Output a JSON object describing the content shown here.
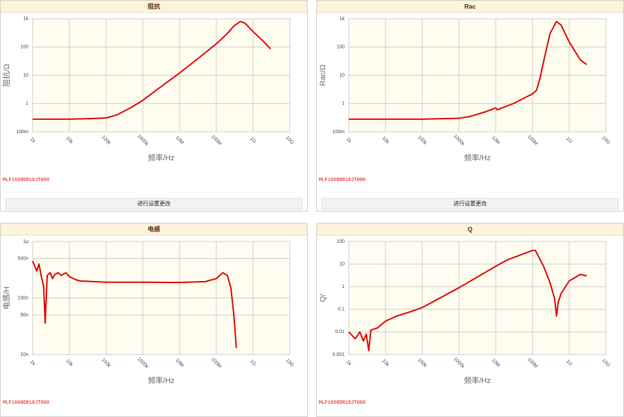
{
  "chart_data": [
    {
      "type": "line",
      "title": "阻抗",
      "ylabel": "阻抗/Ω",
      "xlabel": "频率/Hz",
      "annotation": "MLF1608DR18JT000",
      "button": "进行设置更改",
      "xscale": "log",
      "yscale": "log",
      "grid": true,
      "color": "#e00000",
      "xlim": [
        1000,
        10000000000
      ],
      "ylim": [
        0.1,
        1000
      ],
      "xticks": [
        {
          "value": 1000,
          "label": "1k"
        },
        {
          "value": 10000,
          "label": "10k"
        },
        {
          "value": 100000,
          "label": "100k"
        },
        {
          "value": 1000000,
          "label": "1000k"
        },
        {
          "value": 10000000,
          "label": "10M"
        },
        {
          "value": 100000000,
          "label": "100M"
        },
        {
          "value": 1000000000,
          "label": "1G"
        },
        {
          "value": 10000000000,
          "label": "10G"
        }
      ],
      "yticks": [
        {
          "value": 0.1,
          "label": "100m"
        },
        1,
        10,
        100,
        {
          "value": 1000,
          "label": "1k"
        }
      ],
      "x": [
        1000,
        10000,
        30000,
        100000,
        200000,
        500000,
        1000000,
        3000000,
        10000000,
        30000000,
        100000000,
        200000000,
        300000000,
        450000000,
        600000000,
        1000000000,
        2000000000,
        3000000000
      ],
      "values": [
        0.28,
        0.28,
        0.29,
        0.31,
        0.4,
        0.75,
        1.3,
        3.8,
        12,
        37,
        130,
        300,
        550,
        800,
        700,
        350,
        150,
        85
      ]
    },
    {
      "type": "line",
      "title": "Rac",
      "ylabel": "Rac/Ω",
      "xlabel": "频率/Hz",
      "annotation": "MLF1608DR18JT000",
      "button": "进行设置更改",
      "xscale": "log",
      "yscale": "log",
      "grid": true,
      "color": "#e00000",
      "xlim": [
        1000,
        10000000000
      ],
      "ylim": [
        0.1,
        1000
      ],
      "xticks": [
        {
          "value": 1000,
          "label": "1k"
        },
        {
          "value": 10000,
          "label": "10k"
        },
        {
          "value": 100000,
          "label": "100k"
        },
        {
          "value": 1000000,
          "label": "1000k"
        },
        {
          "value": 10000000,
          "label": "10M"
        },
        {
          "value": 100000000,
          "label": "100M"
        },
        {
          "value": 1000000000,
          "label": "1G"
        },
        {
          "value": 10000000000,
          "label": "10G"
        }
      ],
      "yticks": [
        {
          "value": 0.1,
          "label": "100m"
        },
        1,
        10,
        100,
        {
          "value": 1000,
          "label": "1k"
        }
      ],
      "x": [
        1000,
        100000,
        1000000,
        2000000,
        5000000,
        10000000,
        11000000,
        30000000,
        100000000,
        130000000,
        160000000,
        200000000,
        300000000,
        450000000,
        600000000,
        1000000000,
        2000000000,
        3000000000
      ],
      "values": [
        0.28,
        0.28,
        0.3,
        0.35,
        0.5,
        0.7,
        0.6,
        1.0,
        2.2,
        3,
        8,
        30,
        300,
        800,
        600,
        150,
        35,
        24
      ]
    },
    {
      "type": "line",
      "title": "电感",
      "ylabel": "电感/H",
      "xlabel": "频率/Hz",
      "annotation": "MLF1608DR18JT000",
      "xscale": "log",
      "yscale": "log",
      "grid": true,
      "color": "#e00000",
      "xlim": [
        1000,
        10000000000
      ],
      "ylim": [
        1e-08,
        1e-06
      ],
      "xticks": [
        {
          "value": 1000,
          "label": "1k"
        },
        {
          "value": 10000,
          "label": "10k"
        },
        {
          "value": 100000,
          "label": "100k"
        },
        {
          "value": 1000000,
          "label": "1000k"
        },
        {
          "value": 10000000,
          "label": "10M"
        },
        {
          "value": 100000000,
          "label": "100M"
        },
        {
          "value": 1000000000,
          "label": "1G"
        },
        {
          "value": 10000000000,
          "label": "10G"
        }
      ],
      "yticks": [
        {
          "value": 1e-08,
          "label": "10n"
        },
        {
          "value": 5e-08,
          "label": "50n"
        },
        {
          "value": 1e-07,
          "label": "100n"
        },
        {
          "value": 5e-07,
          "label": "500n"
        },
        {
          "value": 1e-06,
          "label": "1μ"
        }
      ],
      "x": [
        1000,
        1300,
        1500,
        1700,
        2000,
        2200,
        2500,
        3000,
        3500,
        4000,
        5000,
        6000,
        8000,
        10000,
        15000,
        20000,
        100000,
        1000000,
        10000000,
        50000000,
        100000000,
        150000000,
        200000000,
        250000000,
        300000000,
        350000000
      ],
      "values": [
        4.5e-07,
        3e-07,
        4e-07,
        2.5e-07,
        1.6e-07,
        3.6e-08,
        2.5e-07,
        2.8e-07,
        2.2e-07,
        2.6e-07,
        2.8e-07,
        2.5e-07,
        2.8e-07,
        2.4e-07,
        2.1e-07,
        2e-07,
        1.9e-07,
        1.9e-07,
        1.88e-07,
        1.95e-07,
        2.2e-07,
        2.8e-07,
        2.5e-07,
        1.5e-07,
        5e-08,
        1.3e-08
      ]
    },
    {
      "type": "line",
      "title": "Q",
      "ylabel": "Q/",
      "xlabel": "频率/Hz",
      "annotation": "MLF1608DR18JT000",
      "xscale": "log",
      "yscale": "log",
      "grid": true,
      "color": "#e00000",
      "xlim": [
        1000,
        10000000000
      ],
      "ylim": [
        0.001,
        100
      ],
      "xticks": [
        {
          "value": 1000,
          "label": "1k"
        },
        {
          "value": 10000,
          "label": "10k"
        },
        {
          "value": 100000,
          "label": "100k"
        },
        {
          "value": 1000000,
          "label": "1000k"
        },
        {
          "value": 10000000,
          "label": "10M"
        },
        {
          "value": 100000000,
          "label": "100M"
        },
        {
          "value": 1000000000,
          "label": "1G"
        },
        {
          "value": 10000000000,
          "label": "10G"
        }
      ],
      "yticks": [
        0.001,
        0.01,
        0.1,
        1,
        10,
        100
      ],
      "x": [
        1000,
        1500,
        2000,
        2500,
        3000,
        3500,
        4000,
        6000,
        10000,
        20000,
        50000,
        100000,
        1000000,
        10000000,
        20000000,
        100000000,
        120000000,
        200000000,
        300000000,
        400000000,
        450000000,
        500000000,
        600000000,
        1000000000,
        2000000000,
        3000000000
      ],
      "values": [
        0.01,
        0.005,
        0.01,
        0.004,
        0.008,
        0.0015,
        0.012,
        0.015,
        0.03,
        0.05,
        0.08,
        0.12,
        0.9,
        8,
        15,
        40,
        40,
        8,
        1.5,
        0.3,
        0.05,
        0.2,
        0.5,
        1.8,
        3.5,
        3
      ]
    }
  ]
}
